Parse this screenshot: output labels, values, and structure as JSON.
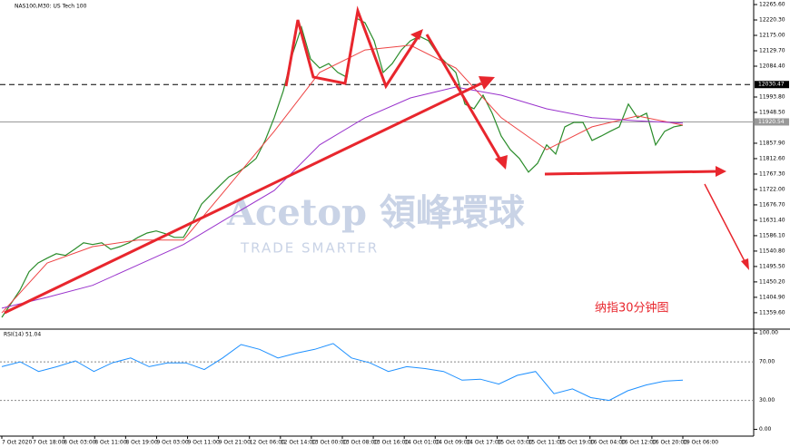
{
  "chart_data": {
    "type": "line",
    "title": "NAS100,M30: US Tech 100",
    "watermark": "Acetop 領峰環球",
    "watermark_sub": "TRADE SMARTER",
    "annotation": "纳指30分钟图",
    "xticks": [
      "7 Oct 2020",
      "7 Oct 18:00",
      "8 Oct 03:00",
      "8 Oct 11:00",
      "8 Oct 19:00",
      "9 Oct 03:00",
      "9 Oct 11:00",
      "9 Oct 21:00",
      "12 Oct 06:00",
      "12 Oct 14:00",
      "13 Oct 00:00",
      "13 Oct 08:00",
      "13 Oct 16:00",
      "14 Oct 01:00",
      "14 Oct 09:00",
      "14 Oct 17:00",
      "15 Oct 03:00",
      "15 Oct 11:00",
      "15 Oct 19:00",
      "16 Oct 04:00",
      "16 Oct 12:00",
      "16 Oct 20:00",
      "19 Oct 06:00"
    ],
    "ylim": [
      11314,
      12279
    ],
    "yticks": [
      {
        "value": 12265.6,
        "label": "12265.60"
      },
      {
        "value": 12220.3,
        "label": "12220.30"
      },
      {
        "value": 12175,
        "label": "12175.00"
      },
      {
        "value": 12129.7,
        "label": "12129.70"
      },
      {
        "value": 12084.4,
        "label": "12084.40"
      },
      {
        "value": 11993.8,
        "label": "11993.80"
      },
      {
        "value": 11948.5,
        "label": "11948.50"
      },
      {
        "value": 11857.9,
        "label": "11857.90"
      },
      {
        "value": 11812.6,
        "label": "11812.60"
      },
      {
        "value": 11767.3,
        "label": "11767.30"
      },
      {
        "value": 11722,
        "label": "11722.00"
      },
      {
        "value": 11676.7,
        "label": "11676.70"
      },
      {
        "value": 11631.4,
        "label": "11631.40"
      },
      {
        "value": 11586.1,
        "label": "11586.10"
      },
      {
        "value": 11540.8,
        "label": "11540.80"
      },
      {
        "value": 11495.5,
        "label": "11495.50"
      },
      {
        "value": 11450.2,
        "label": "11450.20"
      },
      {
        "value": 11404.9,
        "label": "11404.90"
      },
      {
        "value": 11359.6,
        "label": "11359.60"
      }
    ],
    "levels": [
      {
        "value": 12030.47,
        "label": "12030.47",
        "style": "dashed"
      },
      {
        "value": 11920.54,
        "label": "11920.54",
        "style": "solid"
      }
    ],
    "series": [
      {
        "color": "#2a8c2a",
        "values": [
          11346,
          11386,
          11426,
          11480,
          11506,
          11520,
          11533,
          11528,
          11546,
          11565,
          11560,
          11565,
          11546,
          11554,
          11565,
          11581,
          11594,
          11600,
          11592,
          11581,
          11581,
          11626,
          11679,
          11706,
          11733,
          11759,
          11773,
          11791,
          11813,
          11866,
          11933,
          12012,
          12119,
          12199,
          12106,
          12079,
          12092,
          12066,
          12052,
          12226,
          12212,
          12159,
          12066,
          12092,
          12132,
          12159,
          12172,
          12159,
          12119,
          12092,
          12066,
          11973,
          11959,
          11999,
          11946,
          11879,
          11839,
          11813,
          11773,
          11799,
          11853,
          11826,
          11906,
          11919,
          11919,
          11866,
          11879,
          11893,
          11906,
          11973,
          11933,
          11946,
          11853,
          11893,
          11906,
          11911
        ]
      },
      {
        "color": "#ee4444",
        "values": [
          11359,
          11506,
          11554,
          11573,
          11573,
          11733,
          11893,
          12066,
          12132,
          12146,
          12079,
          11933,
          11839,
          11906,
          11938,
          11911
        ]
      },
      {
        "color": "#9932cc",
        "values": [
          11373,
          11405,
          11440,
          11500,
          11560,
          11640,
          11719,
          11853,
          11933,
          11991,
          12023,
          11999,
          11959,
          11933,
          11924,
          11917
        ]
      }
    ],
    "rsi": {
      "title": "RSI(14) 51.04",
      "color": "#1e90ff",
      "ylim": [
        -7,
        103
      ],
      "yticks": [
        {
          "value": 100,
          "label": "100.00"
        },
        {
          "value": 70,
          "label": "70.00"
        },
        {
          "value": 30,
          "label": "30.00"
        },
        {
          "value": 0,
          "label": "0.00"
        }
      ],
      "values": [
        65,
        70,
        60,
        65,
        71,
        60,
        69,
        74,
        65,
        69,
        69,
        62,
        74,
        88,
        83,
        74,
        79,
        83,
        89,
        74,
        69,
        60,
        65,
        63,
        60,
        51,
        52,
        47,
        56,
        60,
        37,
        42,
        33,
        30,
        40,
        46,
        50,
        51
      ]
    }
  }
}
